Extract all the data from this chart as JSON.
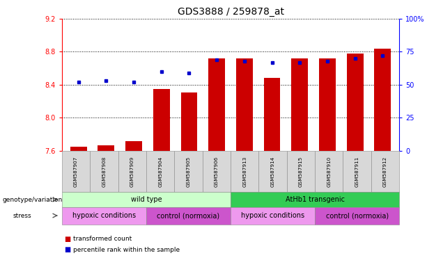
{
  "title": "GDS3888 / 259878_at",
  "samples": [
    "GSM587907",
    "GSM587908",
    "GSM587909",
    "GSM587904",
    "GSM587905",
    "GSM587906",
    "GSM587913",
    "GSM587914",
    "GSM587915",
    "GSM587910",
    "GSM587911",
    "GSM587912"
  ],
  "red_values": [
    7.65,
    7.67,
    7.72,
    8.35,
    8.31,
    8.72,
    8.72,
    8.48,
    8.72,
    8.72,
    8.78,
    8.84
  ],
  "blue_values": [
    52,
    53,
    52,
    60,
    59,
    69,
    68,
    67,
    67,
    68,
    70,
    72
  ],
  "ymin": 7.6,
  "ymax": 9.2,
  "yticks": [
    7.6,
    8.0,
    8.4,
    8.8,
    9.2
  ],
  "right_yticks": [
    0,
    25,
    50,
    75,
    100
  ],
  "right_ytick_labels": [
    "0",
    "25",
    "50",
    "75",
    "100%"
  ],
  "bar_color": "#cc0000",
  "dot_color": "#0000cc",
  "genotype_groups": [
    {
      "label": "wild type",
      "start": 0,
      "end": 6,
      "color": "#ccffcc"
    },
    {
      "label": "AtHb1 transgenic",
      "start": 6,
      "end": 12,
      "color": "#33cc55"
    }
  ],
  "stress_groups": [
    {
      "label": "hypoxic conditions",
      "start": 0,
      "end": 3,
      "color": "#ee99ee"
    },
    {
      "label": "control (normoxia)",
      "start": 3,
      "end": 6,
      "color": "#cc55cc"
    },
    {
      "label": "hypoxic conditions",
      "start": 6,
      "end": 9,
      "color": "#ee99ee"
    },
    {
      "label": "control (normoxia)",
      "start": 9,
      "end": 12,
      "color": "#cc55cc"
    }
  ],
  "legend_items": [
    {
      "label": "transformed count",
      "color": "#cc0000"
    },
    {
      "label": "percentile rank within the sample",
      "color": "#0000cc"
    }
  ],
  "title_fontsize": 10,
  "tick_fontsize": 7,
  "label_fontsize": 7,
  "xticklabel_fontsize": 6
}
